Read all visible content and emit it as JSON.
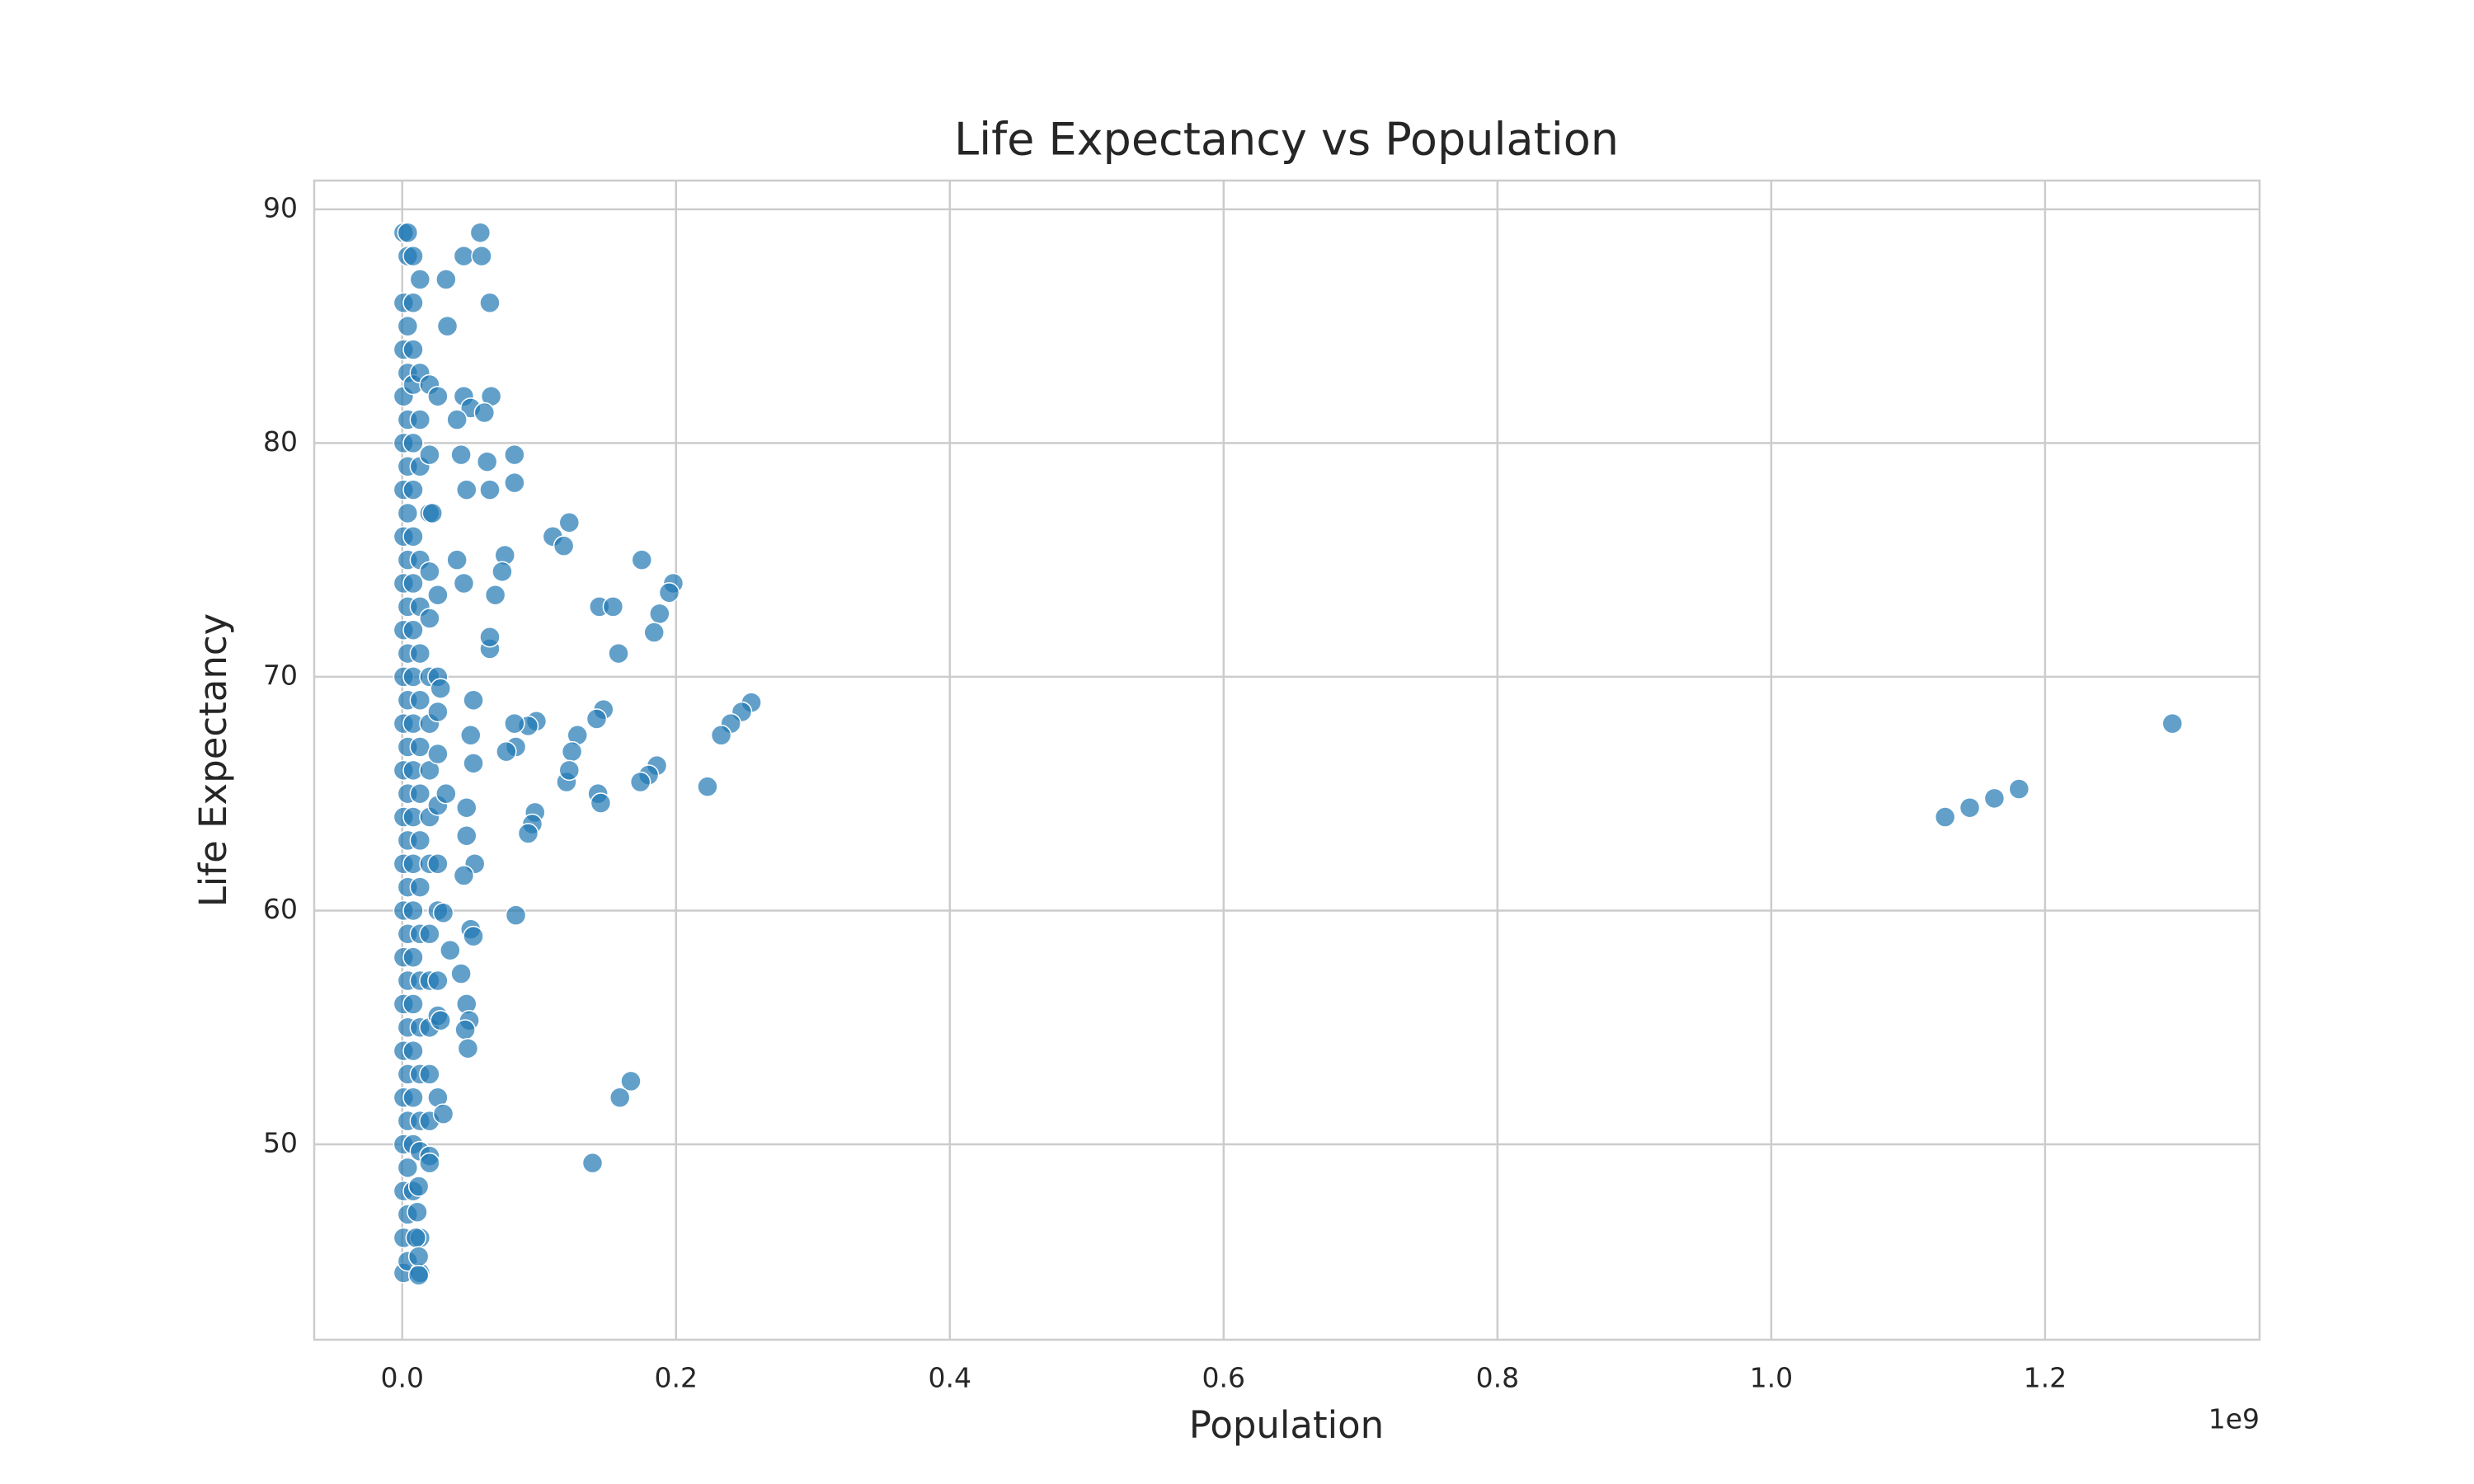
{
  "chart_data": {
    "type": "scatter",
    "title": "Life Expectancy vs Population",
    "x_label": "Population",
    "y_label": "Life Expectancy",
    "x_offset_label": "1e9",
    "x": [
      0.001,
      0.001,
      0.001,
      0.001,
      0.001,
      0.001,
      0.001,
      0.001,
      0.001,
      0.001,
      0.001,
      0.001,
      0.001,
      0.001,
      0.001,
      0.001,
      0.001,
      0.001,
      0.001,
      0.001,
      0.001,
      0.001,
      0.001,
      0.004,
      0.004,
      0.004,
      0.004,
      0.004,
      0.004,
      0.004,
      0.004,
      0.004,
      0.004,
      0.004,
      0.004,
      0.004,
      0.004,
      0.004,
      0.004,
      0.004,
      0.004,
      0.004,
      0.004,
      0.004,
      0.004,
      0.004,
      0.008,
      0.008,
      0.008,
      0.008,
      0.008,
      0.008,
      0.008,
      0.008,
      0.008,
      0.008,
      0.008,
      0.008,
      0.008,
      0.008,
      0.008,
      0.008,
      0.008,
      0.008,
      0.008,
      0.008,
      0.008,
      0.013,
      0.013,
      0.013,
      0.013,
      0.013,
      0.013,
      0.013,
      0.013,
      0.013,
      0.013,
      0.013,
      0.013,
      0.013,
      0.013,
      0.013,
      0.013,
      0.013,
      0.013,
      0.013,
      0.013,
      0.02,
      0.02,
      0.02,
      0.02,
      0.02,
      0.02,
      0.02,
      0.02,
      0.02,
      0.02,
      0.02,
      0.02,
      0.02,
      0.02,
      0.02,
      0.02,
      0.026,
      0.026,
      0.026,
      0.026,
      0.026,
      0.026,
      0.026,
      0.026,
      0.026,
      0.026,
      0.026,
      0.057,
      0.045,
      0.058,
      0.032,
      0.064,
      0.033,
      0.045,
      0.065,
      0.05,
      0.06,
      0.04,
      0.062,
      0.082,
      0.082,
      0.047,
      0.064,
      0.043,
      0.022,
      0.11,
      0.122,
      0.118,
      0.075,
      0.073,
      0.068,
      0.175,
      0.198,
      0.195,
      0.144,
      0.154,
      0.188,
      0.184,
      0.158,
      0.064,
      0.064,
      0.045,
      0.04,
      0.052,
      0.028,
      0.255,
      0.248,
      0.24,
      0.233,
      0.147,
      0.142,
      0.128,
      0.124,
      0.098,
      0.092,
      0.082,
      0.083,
      0.076,
      0.05,
      0.052,
      0.186,
      0.18,
      0.174,
      0.12,
      0.122,
      0.223,
      0.143,
      0.145,
      0.097,
      0.095,
      0.092,
      0.047,
      0.047,
      0.053,
      0.045,
      0.032,
      0.083,
      0.05,
      0.052,
      0.03,
      0.035,
      0.043,
      0.047,
      0.049,
      0.046,
      0.048,
      0.028,
      0.03,
      0.167,
      0.159,
      0.139,
      0.02,
      0.012,
      0.011,
      0.01,
      0.012,
      0.012,
      1.127,
      1.145,
      1.163,
      1.181,
      1.293
    ],
    "values": [
      89,
      86,
      84,
      82,
      80,
      78,
      76,
      74,
      72,
      70,
      68,
      66,
      64,
      62,
      60,
      58,
      56,
      54,
      52,
      50,
      48,
      46,
      44.5,
      89,
      88,
      85,
      83,
      81,
      79,
      77,
      75,
      73,
      71,
      69,
      67,
      65,
      63,
      61,
      59,
      57,
      55,
      53,
      51,
      49,
      47,
      45,
      88,
      86,
      84,
      82.5,
      80,
      78,
      76,
      74,
      72,
      70,
      68,
      66,
      64,
      62,
      60,
      58,
      56,
      54,
      52,
      50,
      48,
      87,
      83,
      81,
      79,
      75,
      73,
      71,
      69,
      67,
      65,
      63,
      61,
      59,
      57,
      55,
      53,
      51,
      49.7,
      46,
      44.5,
      82.5,
      79.5,
      77,
      74.5,
      72.5,
      70,
      68,
      66,
      64,
      62,
      59,
      57,
      55,
      53,
      51,
      49.5,
      82,
      73.5,
      70,
      68.5,
      66.7,
      64.5,
      62,
      60,
      57,
      55.5,
      52,
      89,
      88,
      88,
      87,
      86,
      85,
      82,
      82,
      81.5,
      81.3,
      81,
      79.2,
      79.5,
      78.3,
      78,
      78,
      79.5,
      77,
      76,
      76.6,
      75.6,
      75.2,
      74.5,
      73.5,
      75,
      74,
      73.6,
      73,
      73,
      72.7,
      71.9,
      71,
      71.2,
      71.7,
      74,
      75,
      69,
      69.5,
      68.9,
      68.5,
      68,
      67.5,
      68.6,
      68.2,
      67.5,
      66.8,
      68.1,
      67.9,
      68,
      67,
      66.8,
      67.5,
      66.3,
      66.2,
      65.8,
      65.5,
      65.5,
      66,
      65.3,
      65,
      64.6,
      64.2,
      63.7,
      63.3,
      64.4,
      63.2,
      62,
      61.5,
      65,
      59.8,
      59.2,
      58.9,
      59.9,
      58.3,
      57.3,
      56,
      55.3,
      54.9,
      54.1,
      55.3,
      51.3,
      52.7,
      52,
      49.2,
      49.2,
      48.2,
      47.1,
      46,
      45.2,
      44.4,
      64,
      64.4,
      64.8,
      65.2,
      68
    ],
    "color": "#1f77b4",
    "xlim": [
      -0.0643,
      1.3567
    ],
    "ylim": [
      41.64,
      91.23
    ],
    "xticks": [
      {
        "value": 0,
        "label": "0.0"
      },
      0.2,
      0.4,
      0.6,
      0.8,
      {
        "value": 1,
        "label": "1.0"
      },
      1.2
    ],
    "yticks": [
      50,
      60,
      70,
      80,
      90
    ],
    "grid": true
  }
}
